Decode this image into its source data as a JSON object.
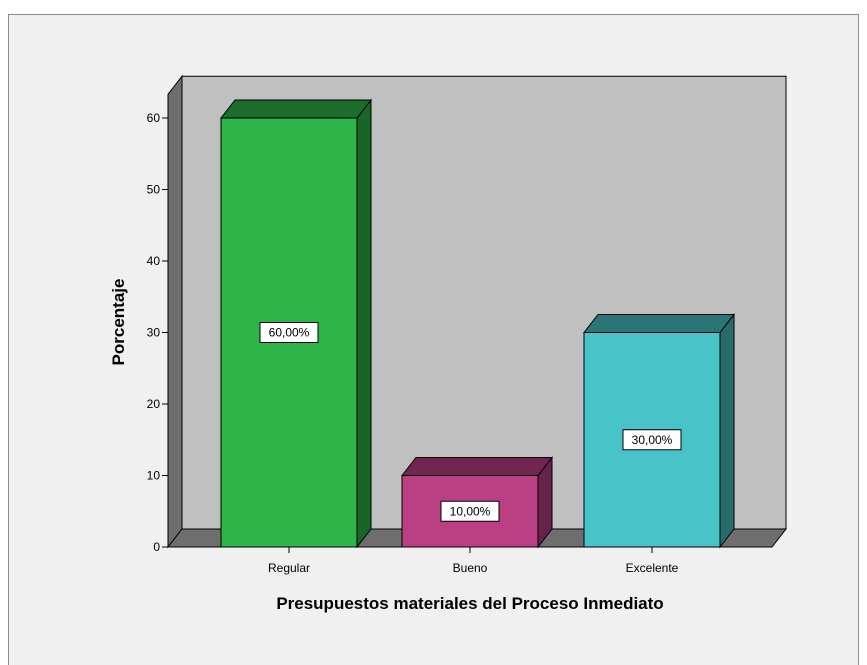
{
  "chart_data": {
    "type": "bar",
    "style": "3d",
    "xlabel": "Presupuestos materiales del Proceso Inmediato",
    "ylabel": "Porcentaje",
    "ylim": [
      0,
      65
    ],
    "yticks": [
      0,
      10,
      20,
      30,
      40,
      50,
      60
    ],
    "categories": [
      "Regular",
      "Bueno",
      "Excelente"
    ],
    "values": [
      60,
      10,
      30
    ],
    "data_labels": [
      "60,00%",
      "10,00%",
      "30,00%"
    ],
    "colors": [
      "#2eb54a",
      "#bb3f84",
      "#48c3c7"
    ],
    "grid": false,
    "legend": "none"
  }
}
